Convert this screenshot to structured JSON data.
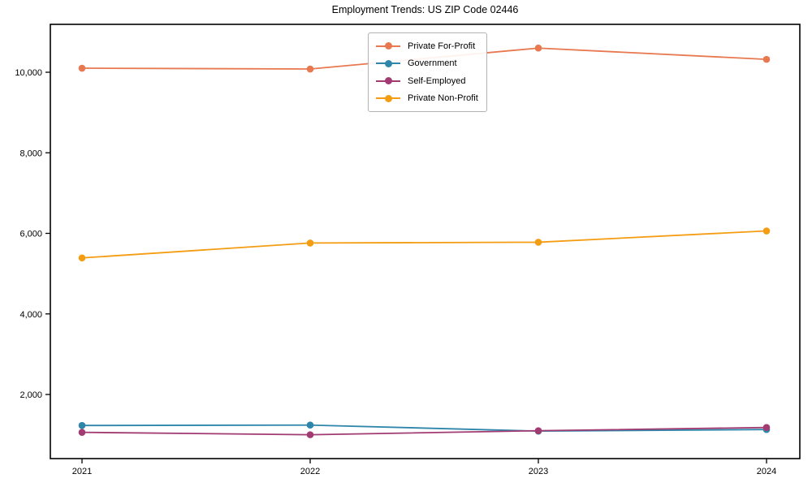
{
  "chart_data": {
    "type": "line",
    "title": "Employment Trends: US ZIP Code 02446",
    "xlabel": "",
    "ylabel": "",
    "x": [
      2021,
      2022,
      2023,
      2024
    ],
    "xtick_labels": [
      "2021",
      "2022",
      "2023",
      "2024"
    ],
    "yticks": [
      {
        "value": 2000,
        "label": "2,000"
      },
      {
        "value": 4000,
        "label": "4,000"
      },
      {
        "value": 6000,
        "label": "6,000"
      },
      {
        "value": 8000,
        "label": "8,000"
      },
      {
        "value": 10000,
        "label": "10,000"
      }
    ],
    "ylim": [
      410,
      11190
    ],
    "grid": false,
    "legend_position": "upper center-left inside",
    "series": [
      {
        "name": "Private For-Profit",
        "color": "#E8784F",
        "values": [
          10100,
          10080,
          10600,
          10320
        ]
      },
      {
        "name": "Government",
        "color": "#2E86AB",
        "values": [
          1230,
          1240,
          1090,
          1130
        ]
      },
      {
        "name": "Self-Employed",
        "color": "#A23B72",
        "values": [
          1060,
          1000,
          1100,
          1180
        ]
      },
      {
        "name": "Private Non-Profit",
        "color": "#F49C12",
        "values": [
          5390,
          5760,
          5780,
          6060
        ]
      }
    ]
  }
}
